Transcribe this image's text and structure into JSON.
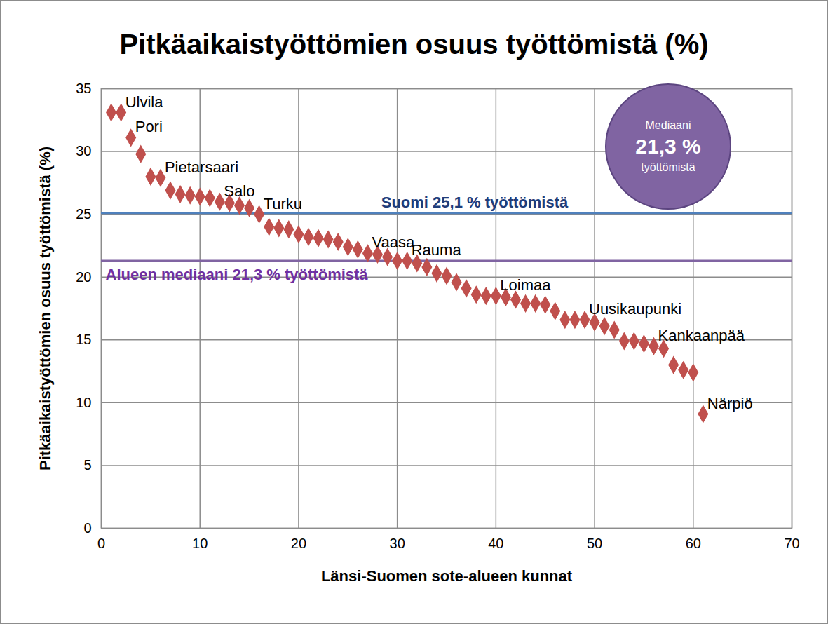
{
  "chart_data": {
    "type": "scatter",
    "title": "Pitkäaikaistyöttömien osuus työttömistä (%)",
    "x_label": "Länsi-Suomen sote-alueen kunnat",
    "y_label": "Pitkäaikaistyöttömien osuus työttömistä (%)",
    "x": [
      1,
      2,
      3,
      4,
      5,
      6,
      7,
      8,
      9,
      10,
      11,
      12,
      13,
      14,
      15,
      16,
      17,
      18,
      19,
      20,
      21,
      22,
      23,
      24,
      25,
      26,
      27,
      28,
      29,
      30,
      31,
      32,
      33,
      34,
      35,
      36,
      37,
      38,
      39,
      40,
      41,
      42,
      43,
      44,
      45,
      46,
      47,
      48,
      49,
      50,
      51,
      52,
      53,
      54,
      55,
      56,
      57,
      58,
      59,
      60,
      61
    ],
    "values": [
      33.1,
      33.1,
      31.1,
      29.8,
      28.0,
      27.9,
      26.9,
      26.6,
      26.5,
      26.4,
      26.3,
      26.0,
      25.9,
      25.7,
      25.5,
      25.0,
      24.0,
      23.9,
      23.8,
      23.4,
      23.2,
      23.1,
      23.0,
      22.8,
      22.4,
      22.2,
      21.9,
      21.8,
      21.6,
      21.3,
      21.3,
      21.1,
      20.8,
      20.3,
      20.1,
      19.6,
      19.1,
      18.6,
      18.5,
      18.5,
      18.4,
      18.2,
      17.9,
      17.9,
      17.8,
      17.3,
      16.6,
      16.6,
      16.6,
      16.4,
      16.1,
      15.8,
      14.9,
      14.9,
      14.7,
      14.5,
      14.3,
      13.0,
      12.6,
      12.4,
      9.1
    ],
    "point_labels": [
      null,
      "Ulvila",
      "Pori",
      null,
      null,
      "Pietarsaari",
      null,
      null,
      null,
      null,
      null,
      "Salo",
      null,
      null,
      null,
      "Turku",
      null,
      null,
      null,
      null,
      null,
      null,
      null,
      null,
      null,
      null,
      "Vaasa",
      null,
      null,
      null,
      "Rauma",
      null,
      null,
      null,
      null,
      null,
      null,
      null,
      null,
      "Loimaa",
      null,
      null,
      null,
      null,
      null,
      null,
      null,
      null,
      "Uusikaupunki",
      null,
      null,
      null,
      null,
      null,
      null,
      "Kankaanpää",
      null,
      null,
      null,
      null,
      "Närpiö"
    ],
    "color": "#c0504d",
    "marker": "diamond",
    "xlim": [
      0,
      70
    ],
    "xticks": [
      0,
      10,
      20,
      30,
      40,
      50,
      60,
      70
    ],
    "ylim": [
      0,
      35
    ],
    "yticks": [
      0,
      5,
      10,
      15,
      20,
      25,
      30,
      35
    ],
    "grid": true,
    "reference_lines": [
      {
        "value": 25.1,
        "label": "Suomi 25,1 % työttömistä",
        "color": "#4f81bd",
        "label_color": "#1f3d7a"
      },
      {
        "value": 21.3,
        "label": "Alueen mediaani 21,3 % työttömistä",
        "color": "#8064a2",
        "label_color": "#7030a0"
      }
    ],
    "callout": {
      "lines": [
        "Mediaani",
        "21,3 %",
        "työttömistä"
      ],
      "color": "#8064a2"
    }
  }
}
